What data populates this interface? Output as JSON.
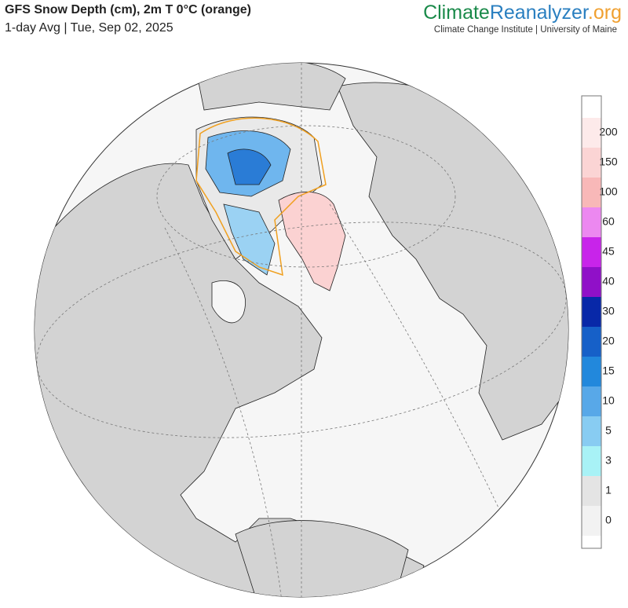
{
  "header": {
    "title": "GFS Snow Depth (cm), 2m T 0°C (orange)",
    "subtitle": "1-day Avg | Tue, Sep 02, 2025",
    "brand": [
      "Climate",
      "Reanalyzer",
      ".org"
    ],
    "institute": "Climate Change Institute | University of Maine"
  },
  "legend": [
    {
      "label": 0,
      "color": "#f2f2f2"
    },
    {
      "label": 1,
      "color": "#e4e4e4"
    },
    {
      "label": 3,
      "color": "#a8f2f6"
    },
    {
      "label": 5,
      "color": "#88ccf2"
    },
    {
      "label": 10,
      "color": "#58a8e8"
    },
    {
      "label": 15,
      "color": "#2288dc"
    },
    {
      "label": 20,
      "color": "#1660c8"
    },
    {
      "label": 30,
      "color": "#0828a8"
    },
    {
      "label": 40,
      "color": "#9010c8"
    },
    {
      "label": 45,
      "color": "#c824ea"
    },
    {
      "label": 60,
      "color": "#ec88f0"
    },
    {
      "label": 100,
      "color": "#f8b8b8"
    },
    {
      "label": 150,
      "color": "#fbd4d4"
    },
    {
      "label": 200,
      "color": "#fdeaea"
    }
  ]
}
